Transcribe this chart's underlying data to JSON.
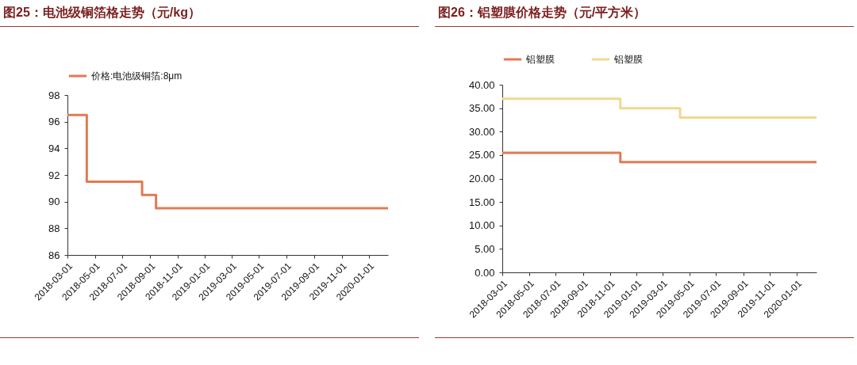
{
  "chart_data": [
    {
      "type": "step",
      "title": "图25：电池级铜箔格走势（元/kg）",
      "legend": "top",
      "grid": false,
      "xlim": [
        "2018-03-01",
        "2020-02-12"
      ],
      "xticks": [
        "2018-03-01",
        "2018-05-01",
        "2018-07-01",
        "2018-09-01",
        "2018-11-01",
        "2019-01-01",
        "2019-03-01",
        "2019-05-01",
        "2019-07-01",
        "2019-09-01",
        "2019-11-01",
        "2020-01-01"
      ],
      "ylim": [
        86,
        98
      ],
      "yticks": [
        86,
        88,
        90,
        92,
        94,
        96,
        98
      ],
      "x": [
        "2018-03-01",
        "2018-04-13",
        "2018-08-14",
        "2018-09-14",
        "2020-02-12"
      ],
      "series": [
        {
          "name": "价格:电池级铜箔:8μm",
          "color": "#e07b54",
          "values": [
            96.5,
            91.5,
            90.5,
            89.5,
            89.5
          ]
        }
      ]
    },
    {
      "type": "step",
      "title": "图26：铝塑膜价格走势（元/平方米）",
      "legend": "top",
      "grid": false,
      "xlim": [
        "2018-03-01",
        "2020-02-15"
      ],
      "xticks": [
        "2018-03-01",
        "2018-05-01",
        "2018-07-01",
        "2018-09-01",
        "2018-11-01",
        "2019-01-01",
        "2019-03-01",
        "2019-05-01",
        "2019-07-01",
        "2019-09-01",
        "2019-11-01",
        "2020-01-01"
      ],
      "ylim": [
        0,
        40
      ],
      "yticks": [
        {
          "value": 0,
          "label": "0.00"
        },
        {
          "value": 5,
          "label": "5.00"
        },
        {
          "value": 10,
          "label": "10.00"
        },
        {
          "value": 15,
          "label": "15.00"
        },
        {
          "value": 20,
          "label": "20.00"
        },
        {
          "value": 25,
          "label": "25.00"
        },
        {
          "value": 30,
          "label": "30.00"
        },
        {
          "value": 35,
          "label": "35.00"
        },
        {
          "value": 40,
          "label": "40.00"
        }
      ],
      "series": [
        {
          "name": "铝塑膜",
          "color": "#e07b54",
          "x": [
            "2018-03-01",
            "2018-11-25",
            "2020-02-15"
          ],
          "values": [
            25.5,
            23.5,
            23.5
          ]
        },
        {
          "name": "铝塑膜",
          "color": "#efd98f",
          "x": [
            "2018-03-01",
            "2018-11-25",
            "2019-04-10",
            "2020-02-15"
          ],
          "values": [
            37,
            35,
            33,
            33
          ]
        }
      ]
    }
  ]
}
